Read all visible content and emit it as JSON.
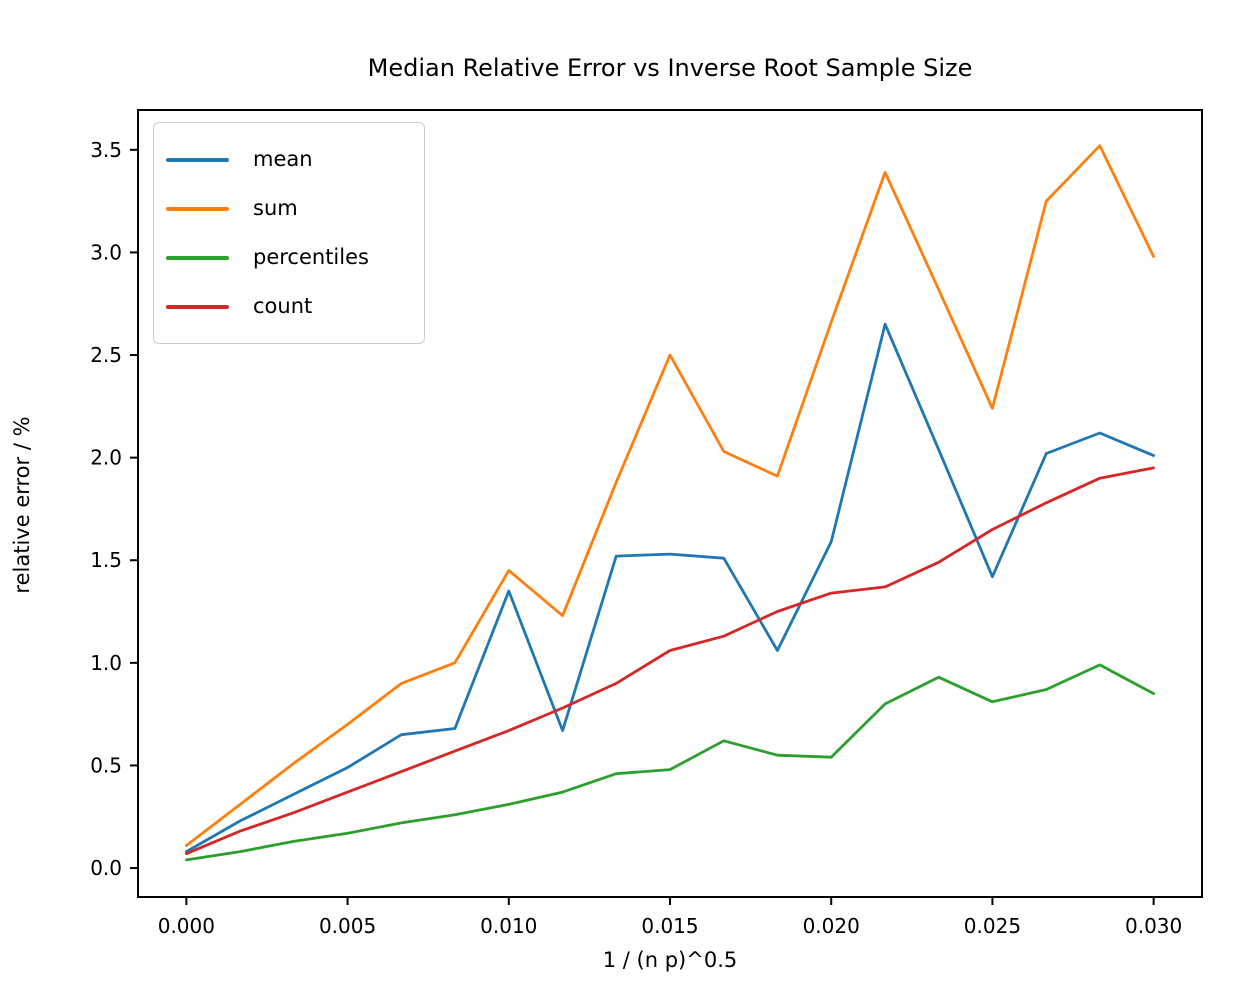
{
  "figure": {
    "title": "Median Relative Error vs Inverse Root Sample Size",
    "xlabel": "1 / (n p)^0.5",
    "ylabel": "relative error / %"
  },
  "chart_data": {
    "type": "line",
    "title": "Median Relative Error vs Inverse Root Sample Size",
    "xlabel": "1 / (n p)^0.5",
    "ylabel": "relative error / %",
    "grid": false,
    "legend_position": "upper left",
    "xlim": [
      -0.0015,
      0.0315
    ],
    "ylim": [
      -0.141,
      3.694
    ],
    "x_tick_values": [
      0.0,
      0.005,
      0.01,
      0.015,
      0.02,
      0.025,
      0.03
    ],
    "x_tick_labels": [
      "0.000",
      "0.005",
      "0.010",
      "0.015",
      "0.020",
      "0.025",
      "0.030"
    ],
    "y_tick_values": [
      0.0,
      0.5,
      1.0,
      1.5,
      2.0,
      2.5,
      3.0,
      3.5
    ],
    "y_tick_labels": [
      "0.0",
      "0.5",
      "1.0",
      "1.5",
      "2.0",
      "2.5",
      "3.0",
      "3.5"
    ],
    "x": [
      0.0,
      0.00167,
      0.00333,
      0.005,
      0.00667,
      0.00833,
      0.01,
      0.01167,
      0.01333,
      0.015,
      0.01667,
      0.01833,
      0.02,
      0.02167,
      0.02333,
      0.025,
      0.02667,
      0.02833,
      0.03
    ],
    "series": [
      {
        "name": "mean",
        "color": "#1f77b4",
        "values": [
          0.08,
          0.23,
          0.36,
          0.49,
          0.65,
          0.68,
          1.35,
          0.67,
          1.52,
          1.53,
          1.51,
          1.06,
          1.59,
          2.65,
          2.04,
          1.42,
          2.02,
          2.12,
          2.01
        ]
      },
      {
        "name": "sum",
        "color": "#ff7f0e",
        "values": [
          0.11,
          0.31,
          0.51,
          0.7,
          0.9,
          1.0,
          1.45,
          1.23,
          1.88,
          2.5,
          2.03,
          1.91,
          2.66,
          3.39,
          2.82,
          2.24,
          3.25,
          3.52,
          2.98
        ]
      },
      {
        "name": "percentiles",
        "color": "#2ca02c",
        "values": [
          0.04,
          0.08,
          0.13,
          0.17,
          0.22,
          0.26,
          0.31,
          0.37,
          0.46,
          0.48,
          0.62,
          0.55,
          0.54,
          0.8,
          0.93,
          0.81,
          0.87,
          0.99,
          0.85
        ]
      },
      {
        "name": "count",
        "color": "#d62728",
        "values": [
          0.07,
          0.18,
          0.27,
          0.37,
          0.47,
          0.57,
          0.67,
          0.78,
          0.9,
          1.06,
          1.13,
          1.25,
          1.34,
          1.37,
          1.49,
          1.65,
          1.78,
          1.9,
          1.95
        ]
      }
    ]
  }
}
